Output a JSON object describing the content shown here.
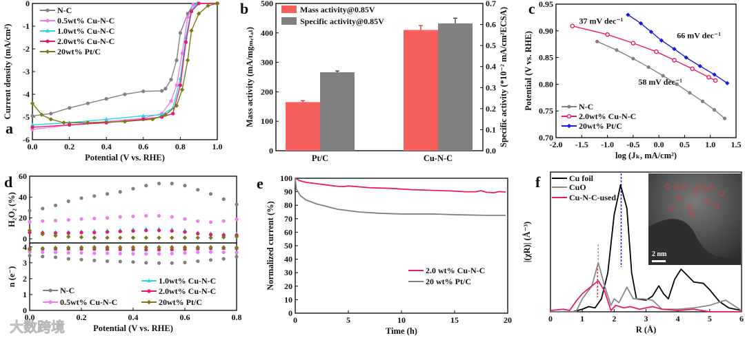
{
  "panel_letters": [
    "a",
    "b",
    "c",
    "d",
    "e",
    "f"
  ],
  "watermark": "大数跨境",
  "chart_data": [
    {
      "panel": "a",
      "type": "line",
      "xlabel": "Potential (V vs. RHE)",
      "ylabel": "Current density (mA/cm²)",
      "xlim": [
        0,
        1
      ],
      "ylim": [
        -6,
        0
      ],
      "xticks": [
        0,
        0.2,
        0.4,
        0.6,
        0.8,
        1.0
      ],
      "xtick_labels": [
        "0.0",
        "0.2",
        "0.4",
        "0.6",
        "0.8",
        "1.0"
      ],
      "yticks": [
        -6,
        -5,
        -4,
        -3,
        -2,
        -1,
        0
      ],
      "ytick_labels": [
        "-6",
        "-5",
        "-4",
        "-3",
        "-2",
        "-1",
        "0"
      ],
      "legend_position": "top-left",
      "series": [
        {
          "name": "N-C",
          "color": "#808080",
          "marker": "circle",
          "x": [
            0,
            0.1,
            0.2,
            0.3,
            0.4,
            0.5,
            0.6,
            0.7,
            0.72,
            0.75,
            0.78,
            0.8,
            0.84,
            0.87,
            0.9,
            1.0
          ],
          "y": [
            -4.95,
            -4.85,
            -4.6,
            -4.4,
            -4.2,
            -4.0,
            -3.87,
            -3.85,
            -3.75,
            -3.35,
            -2.5,
            -1.3,
            -0.45,
            -0.05,
            0,
            0
          ]
        },
        {
          "name": "0.5wt% Cu-N-C",
          "color": "#f07cf0",
          "marker": "circle",
          "x": [
            0,
            0.2,
            0.4,
            0.6,
            0.7,
            0.75,
            0.78,
            0.81,
            0.84,
            0.87,
            0.9,
            1.0
          ],
          "y": [
            -5.55,
            -5.35,
            -5.2,
            -5.05,
            -4.85,
            -4.3,
            -3.6,
            -2.2,
            -0.6,
            -0.05,
            0,
            0
          ]
        },
        {
          "name": "1.0wt% Cu-N-C",
          "color": "#22d8e8",
          "marker": "triangle",
          "x": [
            0,
            0.2,
            0.4,
            0.6,
            0.7,
            0.76,
            0.8,
            0.83,
            0.86,
            0.89,
            1.0
          ],
          "y": [
            -5.35,
            -5.25,
            -5.1,
            -4.95,
            -4.9,
            -4.6,
            -3.3,
            -1.5,
            -0.3,
            0,
            0
          ]
        },
        {
          "name": "2.0wt% Cu-N-C",
          "color": "#e8186e",
          "marker": "circle",
          "x": [
            0,
            0.2,
            0.4,
            0.6,
            0.7,
            0.76,
            0.8,
            0.83,
            0.86,
            0.9,
            1.0
          ],
          "y": [
            -5.45,
            -5.35,
            -5.25,
            -5.1,
            -5.0,
            -4.85,
            -3.6,
            -1.7,
            -0.35,
            0,
            0
          ]
        },
        {
          "name": "20wt% Pt/C",
          "color": "#7a7a10",
          "marker": "diamond",
          "x": [
            0,
            0.05,
            0.1,
            0.17,
            0.3,
            0.5,
            0.65,
            0.72,
            0.78,
            0.81,
            0.84,
            0.86,
            0.9,
            0.95,
            1.0
          ],
          "y": [
            -4.4,
            -4.9,
            -5.1,
            -5.25,
            -5.25,
            -5.2,
            -5.1,
            -4.9,
            -4.5,
            -3.8,
            -2.5,
            -1.2,
            -0.45,
            -0.1,
            0
          ]
        }
      ]
    },
    {
      "panel": "b",
      "type": "bar",
      "categories": [
        "Pt/C",
        "Cu-N-C"
      ],
      "ylabel": "Mass activity (mA/mgₘₑₜₐₗ)",
      "ylabel_right": "Specific activity (*10⁻² mA/cm²ECSA)",
      "ylim": [
        0,
        500
      ],
      "ylim_right": [
        0,
        0.7
      ],
      "yticks": [
        0,
        100,
        200,
        300,
        400,
        500
      ],
      "ytick_labels": [
        "0",
        "100",
        "200",
        "300",
        "400",
        "500"
      ],
      "yticks_right": [
        0,
        0.1,
        0.2,
        0.3,
        0.4,
        0.5,
        0.6,
        0.7
      ],
      "ytick_labels_right": [
        "0.0",
        "0.1",
        "0.2",
        "0.3",
        "0.4",
        "0.5",
        "0.6",
        "0.7"
      ],
      "legend_position": "top-left",
      "series": [
        {
          "name": "Mass activity@0.85V",
          "color": "#f86060",
          "axis": "left",
          "values": [
            165,
            410
          ],
          "errors": [
            5,
            15
          ]
        },
        {
          "name": "Specific activity@0.85V",
          "color": "#808080",
          "axis": "right",
          "values": [
            0.373,
            0.605
          ],
          "errors": [
            0.006,
            0.025
          ]
        }
      ]
    },
    {
      "panel": "c",
      "type": "line",
      "xlabel": "log (Jₖ, mA/cm²)",
      "ylabel": "Potential (V vs. RHE)",
      "xlim": [
        -2,
        1.5
      ],
      "ylim": [
        0.7,
        0.95
      ],
      "xticks": [
        -2,
        -1.5,
        -1,
        -0.5,
        0,
        0.5,
        1,
        1.5
      ],
      "xtick_labels": [
        "-2.0",
        "-1.5",
        "-1.0",
        "-0.5",
        "0.0",
        "0.5",
        "1.0",
        "1.5"
      ],
      "yticks": [
        0.7,
        0.75,
        0.8,
        0.85,
        0.9,
        0.95
      ],
      "ytick_labels": [
        "0.70",
        "0.75",
        "0.80",
        "0.85",
        "0.90",
        "0.95"
      ],
      "legend_position": "bottom-left",
      "annotations": [
        {
          "text": "37 mV dec⁻¹",
          "color": "#e8186e",
          "x": -1.55,
          "y": 0.913
        },
        {
          "text": "66 mV dec⁻¹",
          "color": "#1a1adc",
          "x": 0.35,
          "y": 0.886
        },
        {
          "text": "58 mV dec⁻¹",
          "color": "#555555",
          "x": -0.4,
          "y": 0.799
        }
      ],
      "series": [
        {
          "name": "N-C",
          "color": "#808080",
          "marker": "circle",
          "x": [
            -1.2,
            -0.82,
            -0.5,
            -0.2,
            0.08,
            0.35,
            0.6,
            0.85,
            1.08,
            1.28
          ],
          "y": [
            0.88,
            0.864,
            0.848,
            0.832,
            0.816,
            0.8,
            0.784,
            0.768,
            0.752,
            0.736
          ]
        },
        {
          "name": "2.0wt% Cu-N-C",
          "color": "#e8186e",
          "marker": "open-circle",
          "x": [
            -1.68,
            -1.0,
            -0.5,
            -0.05,
            0.3,
            0.65,
            0.97,
            1.1
          ],
          "y": [
            0.909,
            0.893,
            0.877,
            0.861,
            0.845,
            0.829,
            0.813,
            0.807
          ]
        },
        {
          "name": "20wt% Pt/C",
          "color": "#1a1adc",
          "marker": "diamond",
          "x": [
            -0.6,
            -0.35,
            -0.15,
            0.05,
            0.3,
            0.53,
            0.8,
            1.08,
            1.33
          ],
          "y": [
            0.93,
            0.914,
            0.898,
            0.882,
            0.866,
            0.85,
            0.834,
            0.818,
            0.802
          ]
        }
      ]
    },
    {
      "panel": "d-top",
      "type": "scatter",
      "ylabel": "H₂O₂ (%)",
      "xlim": [
        0,
        0.8
      ],
      "ylim": [
        -4,
        60
      ],
      "yticks": [
        0,
        20,
        40,
        60
      ],
      "ytick_labels": [
        "0",
        "20",
        "40",
        "60"
      ],
      "x": [
        0,
        0.05,
        0.1,
        0.15,
        0.2,
        0.25,
        0.3,
        0.35,
        0.4,
        0.45,
        0.5,
        0.55,
        0.6,
        0.65,
        0.7,
        0.75,
        0.8
      ],
      "series": [
        {
          "name": "N-C",
          "color": "#808080",
          "marker": "circle",
          "y": [
            27,
            29,
            32,
            36,
            39,
            41,
            43,
            45,
            48,
            51,
            53,
            53,
            51,
            47,
            43,
            38,
            33
          ]
        },
        {
          "name": "0.5wt% Cu-N-C",
          "color": "#f07cf0",
          "marker": "circle",
          "y": [
            16,
            17,
            17.5,
            18,
            19,
            19.5,
            20,
            21,
            21.5,
            22,
            22,
            21,
            19,
            17,
            16,
            17,
            18.5
          ]
        },
        {
          "name": "1.0wt% Cu-N-C",
          "color": "#22d8e8",
          "marker": "triangle",
          "y": [
            7,
            6.5,
            6.5,
            6.5,
            7,
            7.5,
            8,
            8.5,
            9,
            9.5,
            9.5,
            9,
            8,
            6,
            5,
            4.5,
            4.5
          ]
        },
        {
          "name": "2.0wt% Cu-N-C",
          "color": "#e8186e",
          "marker": "circle",
          "y": [
            6,
            5.5,
            5.5,
            5.5,
            6,
            6,
            6.5,
            7,
            7.5,
            8,
            8,
            7.5,
            6.5,
            5,
            4,
            3.5,
            3.5
          ]
        },
        {
          "name": "20wt% Pt/C",
          "color": "#7a7a10",
          "marker": "diamond",
          "y": [
            8,
            4.5,
            3,
            2,
            1.5,
            1,
            1,
            1,
            1,
            1,
            1,
            1,
            1,
            1,
            1,
            1.5,
            2
          ]
        }
      ]
    },
    {
      "panel": "d-bottom",
      "type": "scatter",
      "xlabel": "Potential (V vs. RHE)",
      "ylabel": "n (e⁻)",
      "xlim": [
        0,
        0.8
      ],
      "ylim": [
        0,
        4.25
      ],
      "xticks": [
        0,
        0.2,
        0.4,
        0.6,
        0.8
      ],
      "xtick_labels": [
        "0.0",
        "0.2",
        "0.4",
        "0.6",
        "0.8"
      ],
      "yticks": [
        0,
        1,
        2,
        3,
        4
      ],
      "ytick_labels": [
        "0",
        "1",
        "2",
        "3",
        "4"
      ],
      "legend_position": "bottom",
      "x": [
        0,
        0.05,
        0.1,
        0.15,
        0.2,
        0.25,
        0.3,
        0.35,
        0.4,
        0.45,
        0.5,
        0.55,
        0.6,
        0.65,
        0.7,
        0.75,
        0.8
      ],
      "series": [
        {
          "name": "N-C",
          "color": "#808080",
          "marker": "circle",
          "y": [
            3.45,
            3.4,
            3.35,
            3.25,
            3.2,
            3.15,
            3.1,
            3.08,
            3.05,
            3.0,
            2.98,
            2.98,
            3.02,
            3.1,
            3.18,
            3.25,
            3.38
          ]
        },
        {
          "name": "0.5wt% Cu-N-C",
          "color": "#f07cf0",
          "marker": "circle",
          "y": [
            3.68,
            3.67,
            3.65,
            3.63,
            3.62,
            3.6,
            3.6,
            3.58,
            3.57,
            3.56,
            3.56,
            3.58,
            3.62,
            3.66,
            3.68,
            3.67,
            3.64
          ]
        },
        {
          "name": "1.0wt% Cu-N-C",
          "color": "#22d8e8",
          "marker": "triangle",
          "y": [
            3.86,
            3.87,
            3.87,
            3.87,
            3.86,
            3.85,
            3.84,
            3.83,
            3.82,
            3.81,
            3.81,
            3.82,
            3.84,
            3.88,
            3.9,
            3.91,
            3.91
          ]
        },
        {
          "name": "2.0wt% Cu-N-C",
          "color": "#e8186e",
          "marker": "circle",
          "y": [
            3.88,
            3.89,
            3.89,
            3.89,
            3.88,
            3.88,
            3.87,
            3.86,
            3.85,
            3.84,
            3.84,
            3.85,
            3.87,
            3.9,
            3.92,
            3.93,
            3.93
          ]
        },
        {
          "name": "20wt% Pt/C",
          "color": "#7a7a10",
          "marker": "diamond",
          "y": [
            3.84,
            3.91,
            3.94,
            3.96,
            3.97,
            3.98,
            3.98,
            3.98,
            3.98,
            3.98,
            3.98,
            3.98,
            3.98,
            3.98,
            3.98,
            3.97,
            3.96
          ]
        }
      ]
    },
    {
      "panel": "e",
      "type": "line",
      "xlabel": "Time (h)",
      "ylabel": "Normalized current (%)",
      "xlim": [
        0,
        20
      ],
      "ylim": [
        0,
        100
      ],
      "xticks": [
        0,
        5,
        10,
        15,
        20
      ],
      "xtick_labels": [
        "0",
        "5",
        "10",
        "15",
        "20"
      ],
      "yticks": [
        0,
        10,
        20,
        30,
        40,
        50,
        60,
        70,
        80,
        90,
        100
      ],
      "ytick_labels": [
        "0",
        "10",
        "20",
        "30",
        "40",
        "50",
        "60",
        "70",
        "80",
        "90",
        "100"
      ],
      "legend_position": "bottom-right",
      "series": [
        {
          "name": "2.0 wt% Cu-N-C",
          "color": "#e8186e",
          "marker": "none",
          "x": [
            0,
            0.5,
            1,
            2,
            3,
            4,
            4.5,
            5,
            7,
            9,
            11,
            13,
            15,
            16,
            17,
            17.5,
            18,
            18.7,
            19.2,
            19.8
          ],
          "y": [
            100,
            98,
            97,
            96,
            95,
            94,
            93.8,
            94.3,
            93,
            92.5,
            91.5,
            91,
            90.5,
            90,
            90,
            90.8,
            89.6,
            89.3,
            90.1,
            89.8
          ]
        },
        {
          "name": "20 wt% Pt/C",
          "color": "#808080",
          "marker": "none",
          "x": [
            0,
            0.1,
            0.5,
            1,
            2,
            3,
            4,
            5,
            6,
            8,
            10,
            13,
            15,
            18,
            19.8
          ],
          "y": [
            100,
            92,
            87,
            84,
            81,
            79,
            77,
            76,
            75,
            74,
            73.5,
            73.5,
            73,
            72.5,
            72.5
          ]
        }
      ]
    },
    {
      "panel": "f",
      "type": "line",
      "xlabel": "R (Å)",
      "ylabel": "|(χR)| (Å⁻³)",
      "xlim": [
        0,
        6
      ],
      "ylim": [
        0,
        1.08
      ],
      "xticks": [
        0,
        1,
        2,
        3,
        4,
        5,
        6
      ],
      "xtick_labels": [
        "0",
        "1",
        "2",
        "3",
        "4",
        "5",
        "6"
      ],
      "legend_position": "top-left",
      "reference_lines": [
        {
          "x": 2.22,
          "color": "#1a1adc"
        },
        {
          "x": 1.5,
          "color": "#999999"
        },
        {
          "x": 1.48,
          "color": "#e83030"
        }
      ],
      "inset": {
        "scale_bar_label": "2 nm"
      },
      "series": [
        {
          "name": "Cu foil",
          "color": "#000000",
          "marker": "none",
          "x": [
            0,
            0.7,
            1.0,
            1.2,
            1.4,
            1.6,
            1.8,
            2.0,
            2.2,
            2.4,
            2.55,
            2.7,
            3.0,
            3.2,
            3.4,
            3.55,
            3.7,
            3.9,
            4.1,
            4.3,
            4.5,
            4.8,
            5.0,
            5.3,
            5.6,
            6.0
          ],
          "y": [
            0,
            0,
            0.02,
            0.04,
            0.03,
            0.1,
            0.3,
            0.75,
            0.98,
            0.8,
            0.3,
            0.1,
            0.09,
            0.12,
            0.2,
            0.14,
            0.1,
            0.25,
            0.33,
            0.28,
            0.23,
            0.22,
            0.17,
            0.08,
            0.03,
            0.01
          ]
        },
        {
          "name": "CuO",
          "color": "#888888",
          "marker": "none",
          "x": [
            0,
            0.8,
            1.0,
            1.3,
            1.5,
            1.7,
            1.9,
            2.0,
            2.15,
            2.4,
            2.6,
            2.9,
            3.2,
            3.5,
            4.0,
            4.5,
            5.0,
            5.5,
            6.0
          ],
          "y": [
            0,
            0,
            0.1,
            0.2,
            0.38,
            0.2,
            0.05,
            0.1,
            0.07,
            0.19,
            0.1,
            0.1,
            0.09,
            0.02,
            0.02,
            0.03,
            0.05,
            0.09,
            0.01
          ]
        },
        {
          "name": "Cu-N-C-used",
          "color": "#e8186e",
          "marker": "none",
          "x": [
            0,
            0.4,
            0.6,
            0.8,
            1.0,
            1.3,
            1.5,
            1.7,
            1.9,
            2.05,
            2.3,
            2.5,
            2.8,
            3.2,
            3.5,
            4.0,
            4.5,
            5.0,
            6.0
          ],
          "y": [
            0.01,
            0.02,
            0.01,
            0.08,
            0.14,
            0.2,
            0.24,
            0.16,
            0.01,
            0.05,
            0.03,
            0.04,
            0.02,
            0.04,
            0.02,
            0.01,
            0.02,
            0,
            0
          ]
        }
      ]
    }
  ]
}
